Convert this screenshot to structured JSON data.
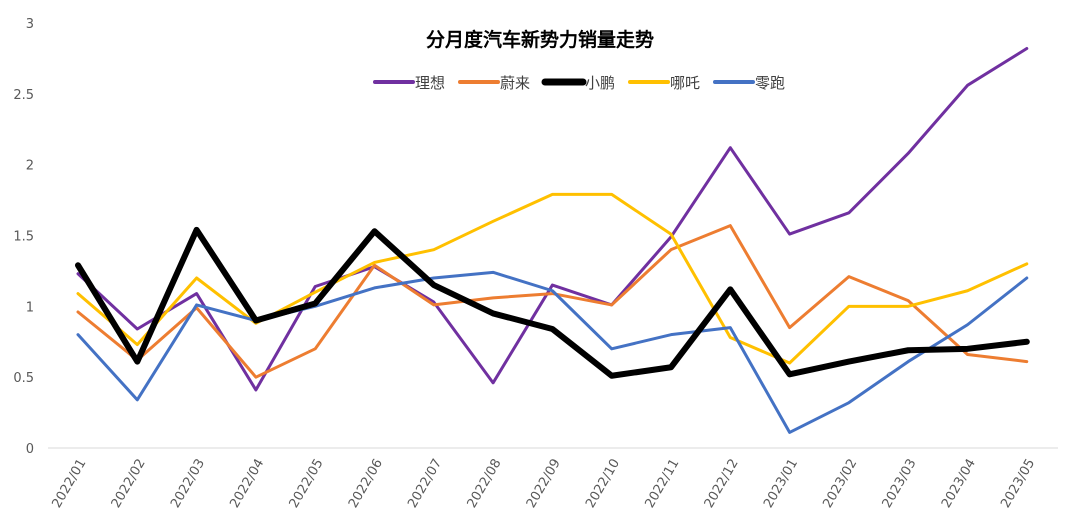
{
  "chart_data": {
    "type": "line",
    "title": "分月度汽车新势力销量走势",
    "xlabel": "",
    "ylabel": "",
    "ylim": [
      0,
      3
    ],
    "yticks": [
      "0",
      "0.5",
      "1",
      "1.5",
      "2",
      "2.5",
      "3"
    ],
    "grid": false,
    "legend_position": "top",
    "categories": [
      "2022/01",
      "2022/02",
      "2022/03",
      "2022/04",
      "2022/05",
      "2022/06",
      "2022/07",
      "2022/08",
      "2022/09",
      "2022/10",
      "2022/11",
      "2022/12",
      "2023/01",
      "2023/02",
      "2023/03",
      "2023/04",
      "2023/05"
    ],
    "series": [
      {
        "name": "理想",
        "color": "#7030A0",
        "width": 3,
        "values": [
          1.23,
          0.84,
          1.09,
          0.41,
          1.14,
          1.28,
          1.03,
          0.46,
          1.15,
          1.01,
          1.49,
          2.12,
          1.51,
          1.66,
          2.08,
          2.56,
          2.82
        ]
      },
      {
        "name": "蔚来",
        "color": "#ED7D31",
        "width": 3,
        "values": [
          0.96,
          0.62,
          0.99,
          0.5,
          0.7,
          1.29,
          1.01,
          1.06,
          1.09,
          1.01,
          1.4,
          1.57,
          0.85,
          1.21,
          1.04,
          0.66,
          0.61
        ]
      },
      {
        "name": "小鹏",
        "color": "#000000",
        "width": 6,
        "values": [
          1.29,
          0.61,
          1.54,
          0.9,
          1.02,
          1.53,
          1.15,
          0.95,
          0.84,
          0.51,
          0.57,
          1.12,
          0.52,
          0.61,
          0.69,
          0.7,
          0.75
        ]
      },
      {
        "name": "哪吒",
        "color": "#FFC000",
        "width": 3,
        "values": [
          1.09,
          0.73,
          1.2,
          0.88,
          1.1,
          1.31,
          1.4,
          1.6,
          1.79,
          1.79,
          1.51,
          0.78,
          0.6,
          1.0,
          1.0,
          1.11,
          1.3
        ]
      },
      {
        "name": "零跑",
        "color": "#4472C4",
        "width": 3,
        "values": [
          0.8,
          0.34,
          1.01,
          0.9,
          1.0,
          1.13,
          1.2,
          1.24,
          1.11,
          0.7,
          0.8,
          0.85,
          0.11,
          0.32,
          0.61,
          0.87,
          1.2
        ]
      }
    ]
  }
}
